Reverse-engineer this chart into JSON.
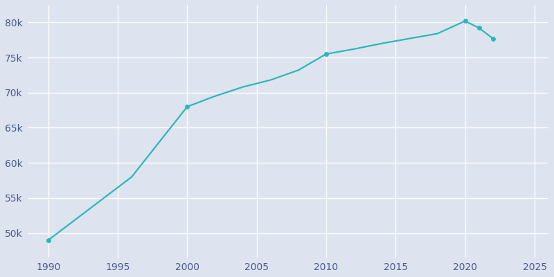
{
  "years": [
    1990,
    1992,
    1994,
    1996,
    1998,
    2000,
    2002,
    2004,
    2006,
    2008,
    2010,
    2012,
    2014,
    2016,
    2018,
    2020,
    2021,
    2022
  ],
  "population": [
    49000,
    52000,
    55000,
    58000,
    63000,
    68000,
    69500,
    70800,
    71800,
    73200,
    75500,
    76200,
    77000,
    77700,
    78400,
    80200,
    79200,
    77700
  ],
  "line_color": "#2ab8b8",
  "marker_color": "#2ab8b8",
  "background_color": "#dde3ef",
  "grid_color": "#ffffff",
  "tick_color": "#4a5a8b",
  "xlim": [
    1988.5,
    2026
  ],
  "ylim": [
    46500,
    82500
  ],
  "xticks": [
    1990,
    1995,
    2000,
    2005,
    2010,
    2015,
    2020,
    2025
  ],
  "ytick_values": [
    50000,
    55000,
    60000,
    65000,
    70000,
    75000,
    80000
  ],
  "ytick_labels": [
    "50k",
    "55k",
    "60k",
    "65k",
    "70k",
    "75k",
    "80k"
  ],
  "marker_years": [
    1990,
    2000,
    2010,
    2020,
    2021,
    2022
  ],
  "marker_populations": [
    49000,
    68000,
    75500,
    80200,
    79200,
    77700
  ]
}
